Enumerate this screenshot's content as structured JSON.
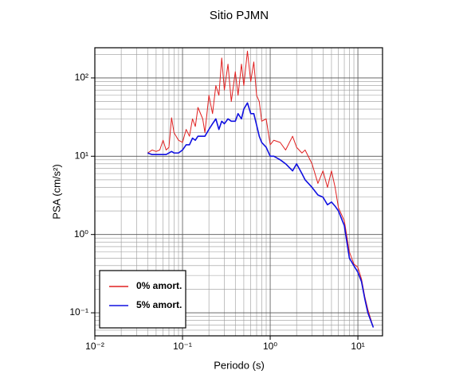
{
  "chart_data": {
    "type": "line",
    "title": "Sitio PJMN",
    "x_label": "Periodo (s)",
    "y_label": "PSA (cm/s²)",
    "log_x": true,
    "log_y": true,
    "grid": true,
    "legend_position": "lower left",
    "xlim": [
      0.01,
      19.1
    ],
    "ylim": [
      0.0508,
      243
    ],
    "xticks": [
      {
        "value": 0.01,
        "label": "10⁻²"
      },
      {
        "value": 0.1,
        "label": "10⁻¹"
      },
      {
        "value": 1,
        "label": "10⁰"
      },
      {
        "value": 10,
        "label": "10¹"
      }
    ],
    "yticks": [
      {
        "value": 0.1,
        "label": "10⁻¹"
      },
      {
        "value": 1,
        "label": "10⁰"
      },
      {
        "value": 10,
        "label": "10¹"
      },
      {
        "value": 100,
        "label": "10²"
      }
    ],
    "x": [
      0.04,
      0.045,
      0.05,
      0.055,
      0.06,
      0.065,
      0.07,
      0.075,
      0.08,
      0.09,
      0.1,
      0.11,
      0.12,
      0.13,
      0.14,
      0.15,
      0.17,
      0.18,
      0.2,
      0.22,
      0.24,
      0.26,
      0.28,
      0.3,
      0.33,
      0.36,
      0.4,
      0.43,
      0.47,
      0.5,
      0.55,
      0.6,
      0.65,
      0.7,
      0.75,
      0.8,
      0.9,
      1.0,
      1.1,
      1.3,
      1.5,
      1.8,
      2.0,
      2.3,
      2.5,
      3.0,
      3.5,
      4.0,
      4.5,
      5.0,
      5.5,
      6.0,
      7.0,
      8.0,
      9.0,
      10,
      11,
      12,
      13,
      15
    ],
    "series": [
      {
        "name": "0% amort.",
        "color": "#e02020",
        "width": 1,
        "values": [
          11,
          12,
          11.5,
          12,
          16,
          12,
          13,
          31,
          20,
          16,
          15,
          22,
          18,
          30,
          24,
          42,
          30,
          20,
          60,
          35,
          80,
          60,
          180,
          70,
          150,
          50,
          120,
          60,
          150,
          80,
          220,
          90,
          160,
          60,
          50,
          28,
          30,
          14,
          16,
          15,
          12,
          18,
          13,
          11,
          12,
          8,
          4.5,
          6.5,
          4.0,
          6.5,
          4.0,
          2.2,
          1.5,
          0.6,
          0.42,
          0.38,
          0.27,
          0.16,
          0.11,
          0.065
        ]
      },
      {
        "name": "5% amort.",
        "color": "#1010e0",
        "width": 1.6,
        "values": [
          11,
          10.5,
          10.5,
          10.5,
          10.5,
          10.5,
          11,
          11.5,
          11,
          11,
          12,
          14,
          14,
          17,
          16,
          18,
          18,
          18,
          22,
          26,
          30,
          22,
          28,
          26,
          30,
          28,
          28,
          35,
          30,
          40,
          48,
          35,
          35,
          25,
          18,
          15,
          13,
          10,
          10,
          9,
          8,
          6.5,
          8,
          6,
          5,
          4,
          3.2,
          3,
          2.4,
          2.6,
          2.3,
          2.0,
          1.3,
          0.5,
          0.4,
          0.33,
          0.25,
          0.15,
          0.1,
          0.065
        ]
      }
    ]
  }
}
